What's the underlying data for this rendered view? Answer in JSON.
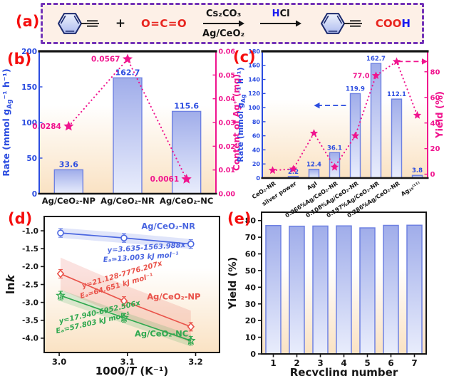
{
  "panels": {
    "a": {
      "label": "(a)"
    },
    "b": {
      "label": "(b)"
    },
    "c": {
      "label": "(c)"
    },
    "d": {
      "label": "(d)"
    },
    "e": {
      "label": "(e)"
    }
  },
  "scheme": {
    "plus": "+",
    "co2": "O=C=O",
    "base": "Cs₂CO₃",
    "catalyst": "Ag/CeO₂",
    "acid_h": "H",
    "acid_cl": "Cl",
    "product_coo": "COO",
    "product_h": "H"
  },
  "colors": {
    "panel_label": "#f50d0d",
    "axis_blue": "#2b4ce0",
    "pink": "#f0148e",
    "bar_border": "#6e81e2",
    "bar_top": "#a0adea",
    "bar_bottom": "#e9edfc",
    "bg_bottom": "#fae2c3",
    "scheme_bg": "#fdf0e7",
    "scheme_border": "#7333b8",
    "line_blue": "#4a66e0",
    "line_red": "#e9534a",
    "line_green": "#2fa84f",
    "black": "#161616"
  },
  "chart_data": [
    {
      "id": "b",
      "type": "bar+scatter",
      "categories": [
        "Ag/CeO₂-NP",
        "Ag/CeO₂-NR",
        "Ag/CeO₂-NC"
      ],
      "bars": {
        "values": [
          33.6,
          162.7,
          115.6
        ],
        "labels": [
          "33.6",
          "162.7",
          "115.6"
        ]
      },
      "stars": {
        "values": [
          0.0284,
          0.0567,
          0.0061
        ],
        "labels": [
          "0.0284",
          "0.0567",
          "0.0061"
        ]
      },
      "left_axis": {
        "label_parts": [
          {
            "t": "Rate (mmol g"
          },
          {
            "t": "Ag",
            "sub": true
          },
          {
            "t": "⁻¹ h⁻¹)"
          }
        ],
        "ticks": [
          0,
          50,
          100,
          150,
          200
        ],
        "range": [
          0,
          200
        ]
      },
      "right_axis": {
        "label": "Content of Ag⁺ (mg)",
        "ticks": [
          "0.00",
          "0.01",
          "0.02",
          "0.03",
          "0.04",
          "0.05",
          "0.06"
        ],
        "range": [
          0,
          0.06
        ]
      }
    },
    {
      "id": "c",
      "type": "bar+scatter",
      "categories": [
        "CeO₂-NR",
        "silver power",
        "AgI",
        "0.066%Ag/CeO₂-NR",
        "0.108%Ag/CeO₂-NR",
        "0.197%Ag/CeO₂-NR",
        "0.286%Ag/CeO₂-NR",
        "Ag₂₅⁽¹¹⁾"
      ],
      "bars": {
        "values": [
          0,
          2.2,
          12.4,
          36.1,
          119.9,
          162.7,
          112.1,
          3.8
        ],
        "labels": [
          "",
          "2.2",
          "12.4",
          "36.1",
          "119.9",
          "162.7",
          "112.1",
          "3.8"
        ]
      },
      "stars": {
        "values": [
          3,
          4,
          32,
          5.5,
          30,
          77,
          88,
          46
        ],
        "labels": [
          "",
          "",
          "",
          "",
          "",
          "77.0",
          "",
          ""
        ]
      },
      "left_axis": {
        "label_parts": [
          {
            "t": "Rate (mmol g"
          },
          {
            "t": "Ag",
            "sub": true
          },
          {
            "t": "⁻¹ h⁻¹)"
          }
        ],
        "ticks": [
          0,
          20,
          40,
          60,
          80,
          100,
          120,
          140,
          160,
          180
        ],
        "range": [
          0,
          180
        ]
      },
      "right_axis": {
        "label": "Yield (%)",
        "ticks": [
          "0",
          "20",
          "40",
          "60",
          "80"
        ],
        "range": [
          -3,
          96
        ]
      },
      "arrows": {
        "rate_arrow": {
          "value": 103,
          "from_slot": 4.05,
          "to_slot": 2.5,
          "direction": "left"
        },
        "yield_arrow": {
          "value": 88,
          "from_slot": 6.55,
          "direction": "right"
        }
      }
    },
    {
      "id": "d",
      "type": "line",
      "xlabel_parts": [
        {
          "t": "1000/"
        },
        {
          "t": "T",
          "italic": true
        },
        {
          "t": " (K⁻¹)"
        }
      ],
      "ylabel_parts": [
        {
          "t": "ln"
        },
        {
          "t": "k",
          "italic": true
        }
      ],
      "xlim": [
        2.978,
        3.235
      ],
      "xticks": [
        "3.0",
        "3.1",
        "3.2"
      ],
      "ylim": [
        -4.4,
        -0.6
      ],
      "yticks": [
        "-1.0",
        "-1.5",
        "-2.0",
        "-2.5",
        "-3.0",
        "-3.5",
        "-4.0"
      ],
      "series": [
        {
          "name": "Ag/CeO₂-NR",
          "color": "#4a66e0",
          "marker": "circle",
          "band": 0.14,
          "x": [
            3.002,
            3.095,
            3.193
          ],
          "y": [
            -1.06,
            -1.2,
            -1.37
          ],
          "eq": "y=3.635-1563.988x",
          "ea": "Eₐ=13.003 kJ mol⁻¹",
          "name_pos": [
            3.16,
            -0.95
          ],
          "eq_pos": [
            3.128,
            -1.53
          ],
          "ea_pos": [
            3.12,
            -1.8
          ],
          "text_rot": -4
        },
        {
          "name": "Ag/CeO₂-NP",
          "color": "#e9534a",
          "marker": "diamond",
          "band": 0.45,
          "x": [
            3.002,
            3.095,
            3.193
          ],
          "y": [
            -2.2,
            -2.96,
            -3.68
          ],
          "eq": "y=21.128-7776.207x",
          "ea": "Eₐ=64.651 kJ mol⁻¹",
          "name_pos": [
            3.168,
            -2.92
          ],
          "eq_pos": [
            3.093,
            -2.28
          ],
          "ea_pos": [
            3.085,
            -2.6
          ],
          "text_rot": -16
        },
        {
          "name": "Ag/CeO₂-NC",
          "color": "#2fa84f",
          "marker": "star",
          "band": 0.16,
          "x": [
            3.002,
            3.095,
            3.193
          ],
          "y": [
            -2.81,
            -3.43,
            -4.07
          ],
          "eq": "y=17.940-6952.506x",
          "ea": "Eₐ=57.803 kJ mol⁻¹",
          "name_pos": [
            3.15,
            -3.95
          ],
          "eq_pos": [
            3.06,
            -3.33
          ],
          "ea_pos": [
            3.05,
            -3.63
          ],
          "text_rot": -13
        }
      ]
    },
    {
      "id": "e",
      "type": "bar",
      "categories": [
        "1",
        "2",
        "3",
        "4",
        "5",
        "6",
        "7"
      ],
      "values": [
        77.0,
        76.6,
        76.7,
        76.8,
        75.6,
        77.1,
        77.2
      ],
      "xlabel": "Recycling number",
      "ylabel": "Yield (%)",
      "ylim": [
        0,
        85
      ],
      "yticks": [
        0,
        10,
        20,
        30,
        40,
        50,
        60,
        70,
        80
      ]
    }
  ]
}
